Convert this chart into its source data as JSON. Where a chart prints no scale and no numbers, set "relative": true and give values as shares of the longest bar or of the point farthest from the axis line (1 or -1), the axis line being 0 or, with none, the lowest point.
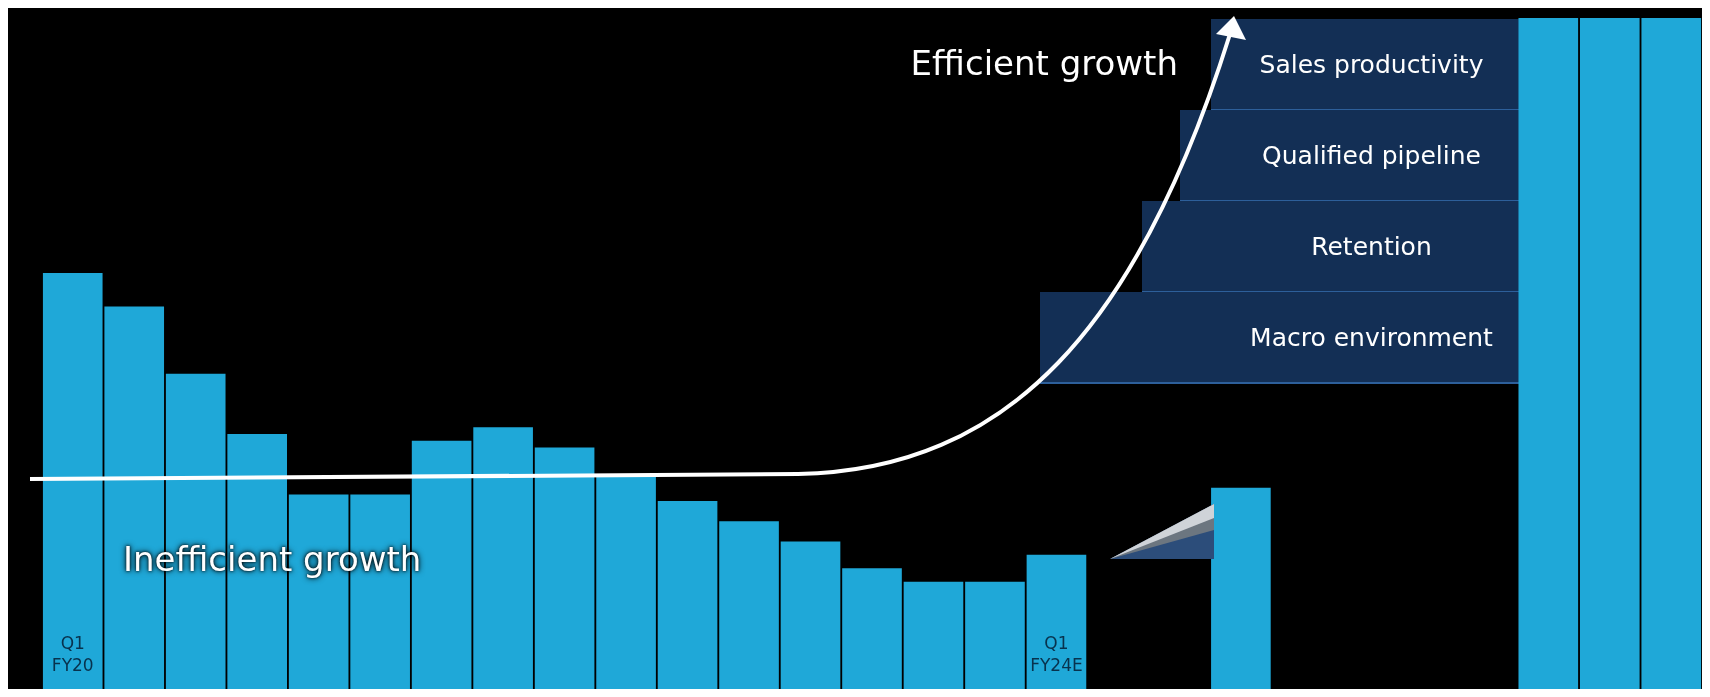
{
  "chart_data": {
    "type": "bar",
    "relative": true,
    "color": "#1fa8d8",
    "categories": [
      "Q1 FY20",
      null,
      null,
      null,
      null,
      null,
      null,
      null,
      null,
      null,
      null,
      null,
      null,
      null,
      null,
      null,
      "Q1 FY24E",
      null,
      null,
      null,
      null,
      null,
      null,
      null,
      null,
      null,
      null
    ],
    "values": [
      0.62,
      0.57,
      0.47,
      0.38,
      0.29,
      0.29,
      0.37,
      0.39,
      0.36,
      0.32,
      0.28,
      0.25,
      0.22,
      0.18,
      0.16,
      0.16,
      0.2,
      null,
      null,
      0.3,
      null,
      null,
      null,
      null,
      1,
      1,
      1
    ],
    "annotations": [
      "Efficient growth",
      "Inefficient growth",
      "Sales productivity",
      "Qualified pipeline",
      "Retention",
      "Macro environment"
    ]
  }
}
